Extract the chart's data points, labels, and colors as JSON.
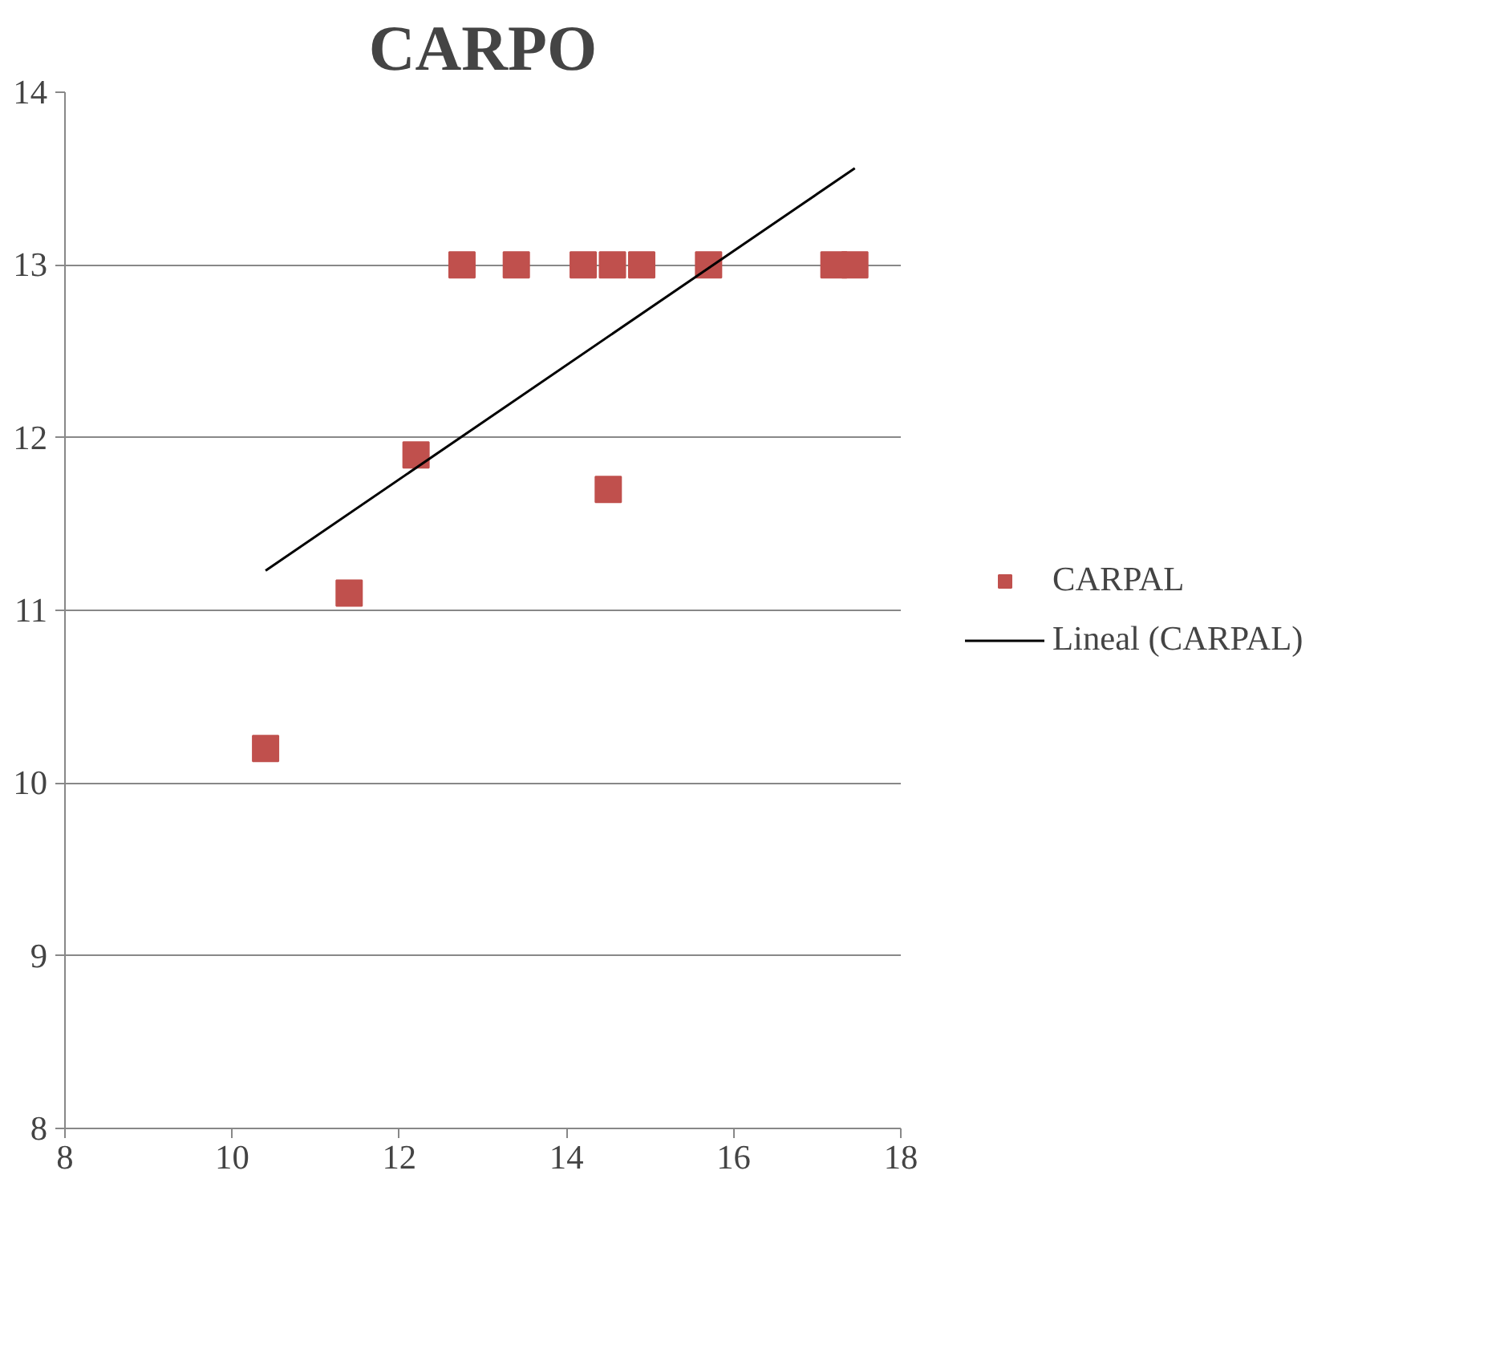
{
  "chart_data": {
    "type": "scatter",
    "title": "CARPO",
    "xlim": [
      8,
      18
    ],
    "xticks": [
      8,
      10,
      12,
      14,
      16,
      18
    ],
    "ylim": [
      8,
      14
    ],
    "yticks": [
      8,
      9,
      10,
      11,
      12,
      13,
      14
    ],
    "grid": "y",
    "legend": "right",
    "marker": "square",
    "series": [
      {
        "name": "CARPAL",
        "color": "#c0504d",
        "x": [
          10.4,
          11.4,
          12.2,
          12.75,
          13.4,
          14.2,
          14.5,
          14.55,
          14.9,
          15.7,
          17.2,
          17.45
        ],
        "values": [
          10.2,
          11.1,
          11.9,
          13,
          13,
          13,
          11.7,
          13,
          13,
          13,
          13,
          13
        ]
      },
      {
        "name": "Lineal (CARPAL)",
        "type": "line",
        "color": "#000000",
        "marker": "none",
        "line_style": "solid",
        "x": [
          10.4,
          17.45
        ],
        "values": [
          11.23,
          13.56
        ]
      }
    ]
  }
}
